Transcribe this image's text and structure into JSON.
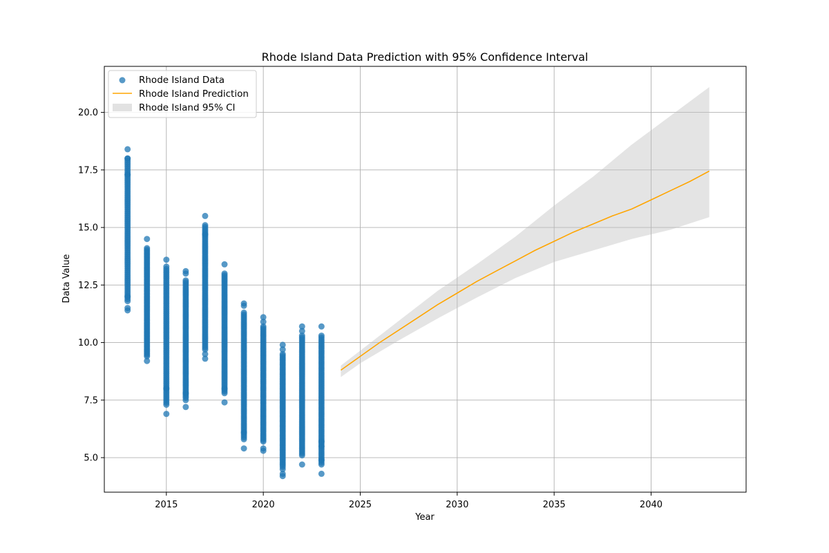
{
  "chart_data": {
    "type": "scatter",
    "title": "Rhode Island Data Prediction with 95% Confidence Interval",
    "xlabel": "Year",
    "ylabel": "Data Value",
    "xlim": [
      2011.8,
      2044.9
    ],
    "ylim": [
      3.5,
      22.0
    ],
    "x_ticks": [
      2015,
      2020,
      2025,
      2030,
      2035,
      2040
    ],
    "x_tick_labels": [
      "2015",
      "2020",
      "2025",
      "2030",
      "2035",
      "2040"
    ],
    "y_ticks": [
      5.0,
      7.5,
      10.0,
      12.5,
      15.0,
      17.5,
      20.0
    ],
    "y_tick_labels": [
      "5.0",
      "7.5",
      "10.0",
      "12.5",
      "15.0",
      "17.5",
      "20.0"
    ],
    "grid": true,
    "legend_position": "top-left",
    "colors": {
      "data": "#1f77b4",
      "prediction": "#ffa500",
      "ci": "#bfbfbf"
    },
    "series": [
      {
        "name": "Rhode Island Data",
        "kind": "scatter",
        "per_year": [
          {
            "x": 2013,
            "min": 11.4,
            "max": 18.4,
            "outliers": [
              11.4,
              11.5,
              12.0,
              17.3,
              18.0,
              18.4
            ]
          },
          {
            "x": 2014,
            "min": 9.2,
            "max": 14.5,
            "outliers": [
              9.2,
              14.5
            ]
          },
          {
            "x": 2015,
            "min": 6.9,
            "max": 13.6,
            "outliers": [
              6.9,
              8.0,
              13.3,
              13.6
            ]
          },
          {
            "x": 2016,
            "min": 7.2,
            "max": 13.1,
            "outliers": [
              7.2,
              7.5,
              7.8,
              13.0,
              13.1
            ]
          },
          {
            "x": 2017,
            "min": 9.3,
            "max": 15.5,
            "outliers": [
              9.3,
              9.5,
              14.7,
              15.5
            ]
          },
          {
            "x": 2018,
            "min": 7.4,
            "max": 13.4,
            "outliers": [
              7.4,
              8.0,
              13.4
            ]
          },
          {
            "x": 2019,
            "min": 5.4,
            "max": 11.7,
            "outliers": [
              5.4,
              6.1,
              11.6,
              11.7
            ]
          },
          {
            "x": 2020,
            "min": 5.3,
            "max": 11.1,
            "outliers": [
              5.3,
              5.4,
              10.9,
              11.1
            ]
          },
          {
            "x": 2021,
            "min": 4.2,
            "max": 9.9,
            "outliers": [
              4.2,
              4.3,
              4.5,
              9.7,
              9.9
            ]
          },
          {
            "x": 2022,
            "min": 4.7,
            "max": 10.7,
            "outliers": [
              4.7,
              10.5,
              10.7
            ]
          },
          {
            "x": 2023,
            "min": 4.3,
            "max": 10.7,
            "outliers": [
              4.3,
              4.9,
              5.5,
              5.7,
              10.7
            ]
          }
        ]
      },
      {
        "name": "Rhode Island Prediction",
        "kind": "line",
        "x": [
          2024,
          2025,
          2026,
          2027,
          2028,
          2029,
          2030,
          2031,
          2032,
          2033,
          2034,
          2035,
          2036,
          2037,
          2038,
          2039,
          2040,
          2041,
          2042,
          2043
        ],
        "y": [
          8.8,
          9.4,
          10.0,
          10.55,
          11.1,
          11.65,
          12.15,
          12.65,
          13.1,
          13.55,
          14.0,
          14.4,
          14.8,
          15.15,
          15.5,
          15.8,
          16.2,
          16.6,
          17.0,
          17.45
        ]
      },
      {
        "name": "Rhode Island 95% CI",
        "kind": "band",
        "x": [
          2024,
          2025,
          2027,
          2029,
          2031,
          2033,
          2035,
          2037,
          2039,
          2041,
          2043
        ],
        "lower": [
          8.5,
          9.1,
          10.1,
          11.05,
          11.95,
          12.8,
          13.5,
          14.0,
          14.5,
          14.9,
          15.45
        ],
        "upper": [
          9.0,
          9.65,
          10.95,
          12.25,
          13.4,
          14.6,
          15.95,
          17.2,
          18.6,
          19.85,
          21.1
        ]
      }
    ]
  }
}
